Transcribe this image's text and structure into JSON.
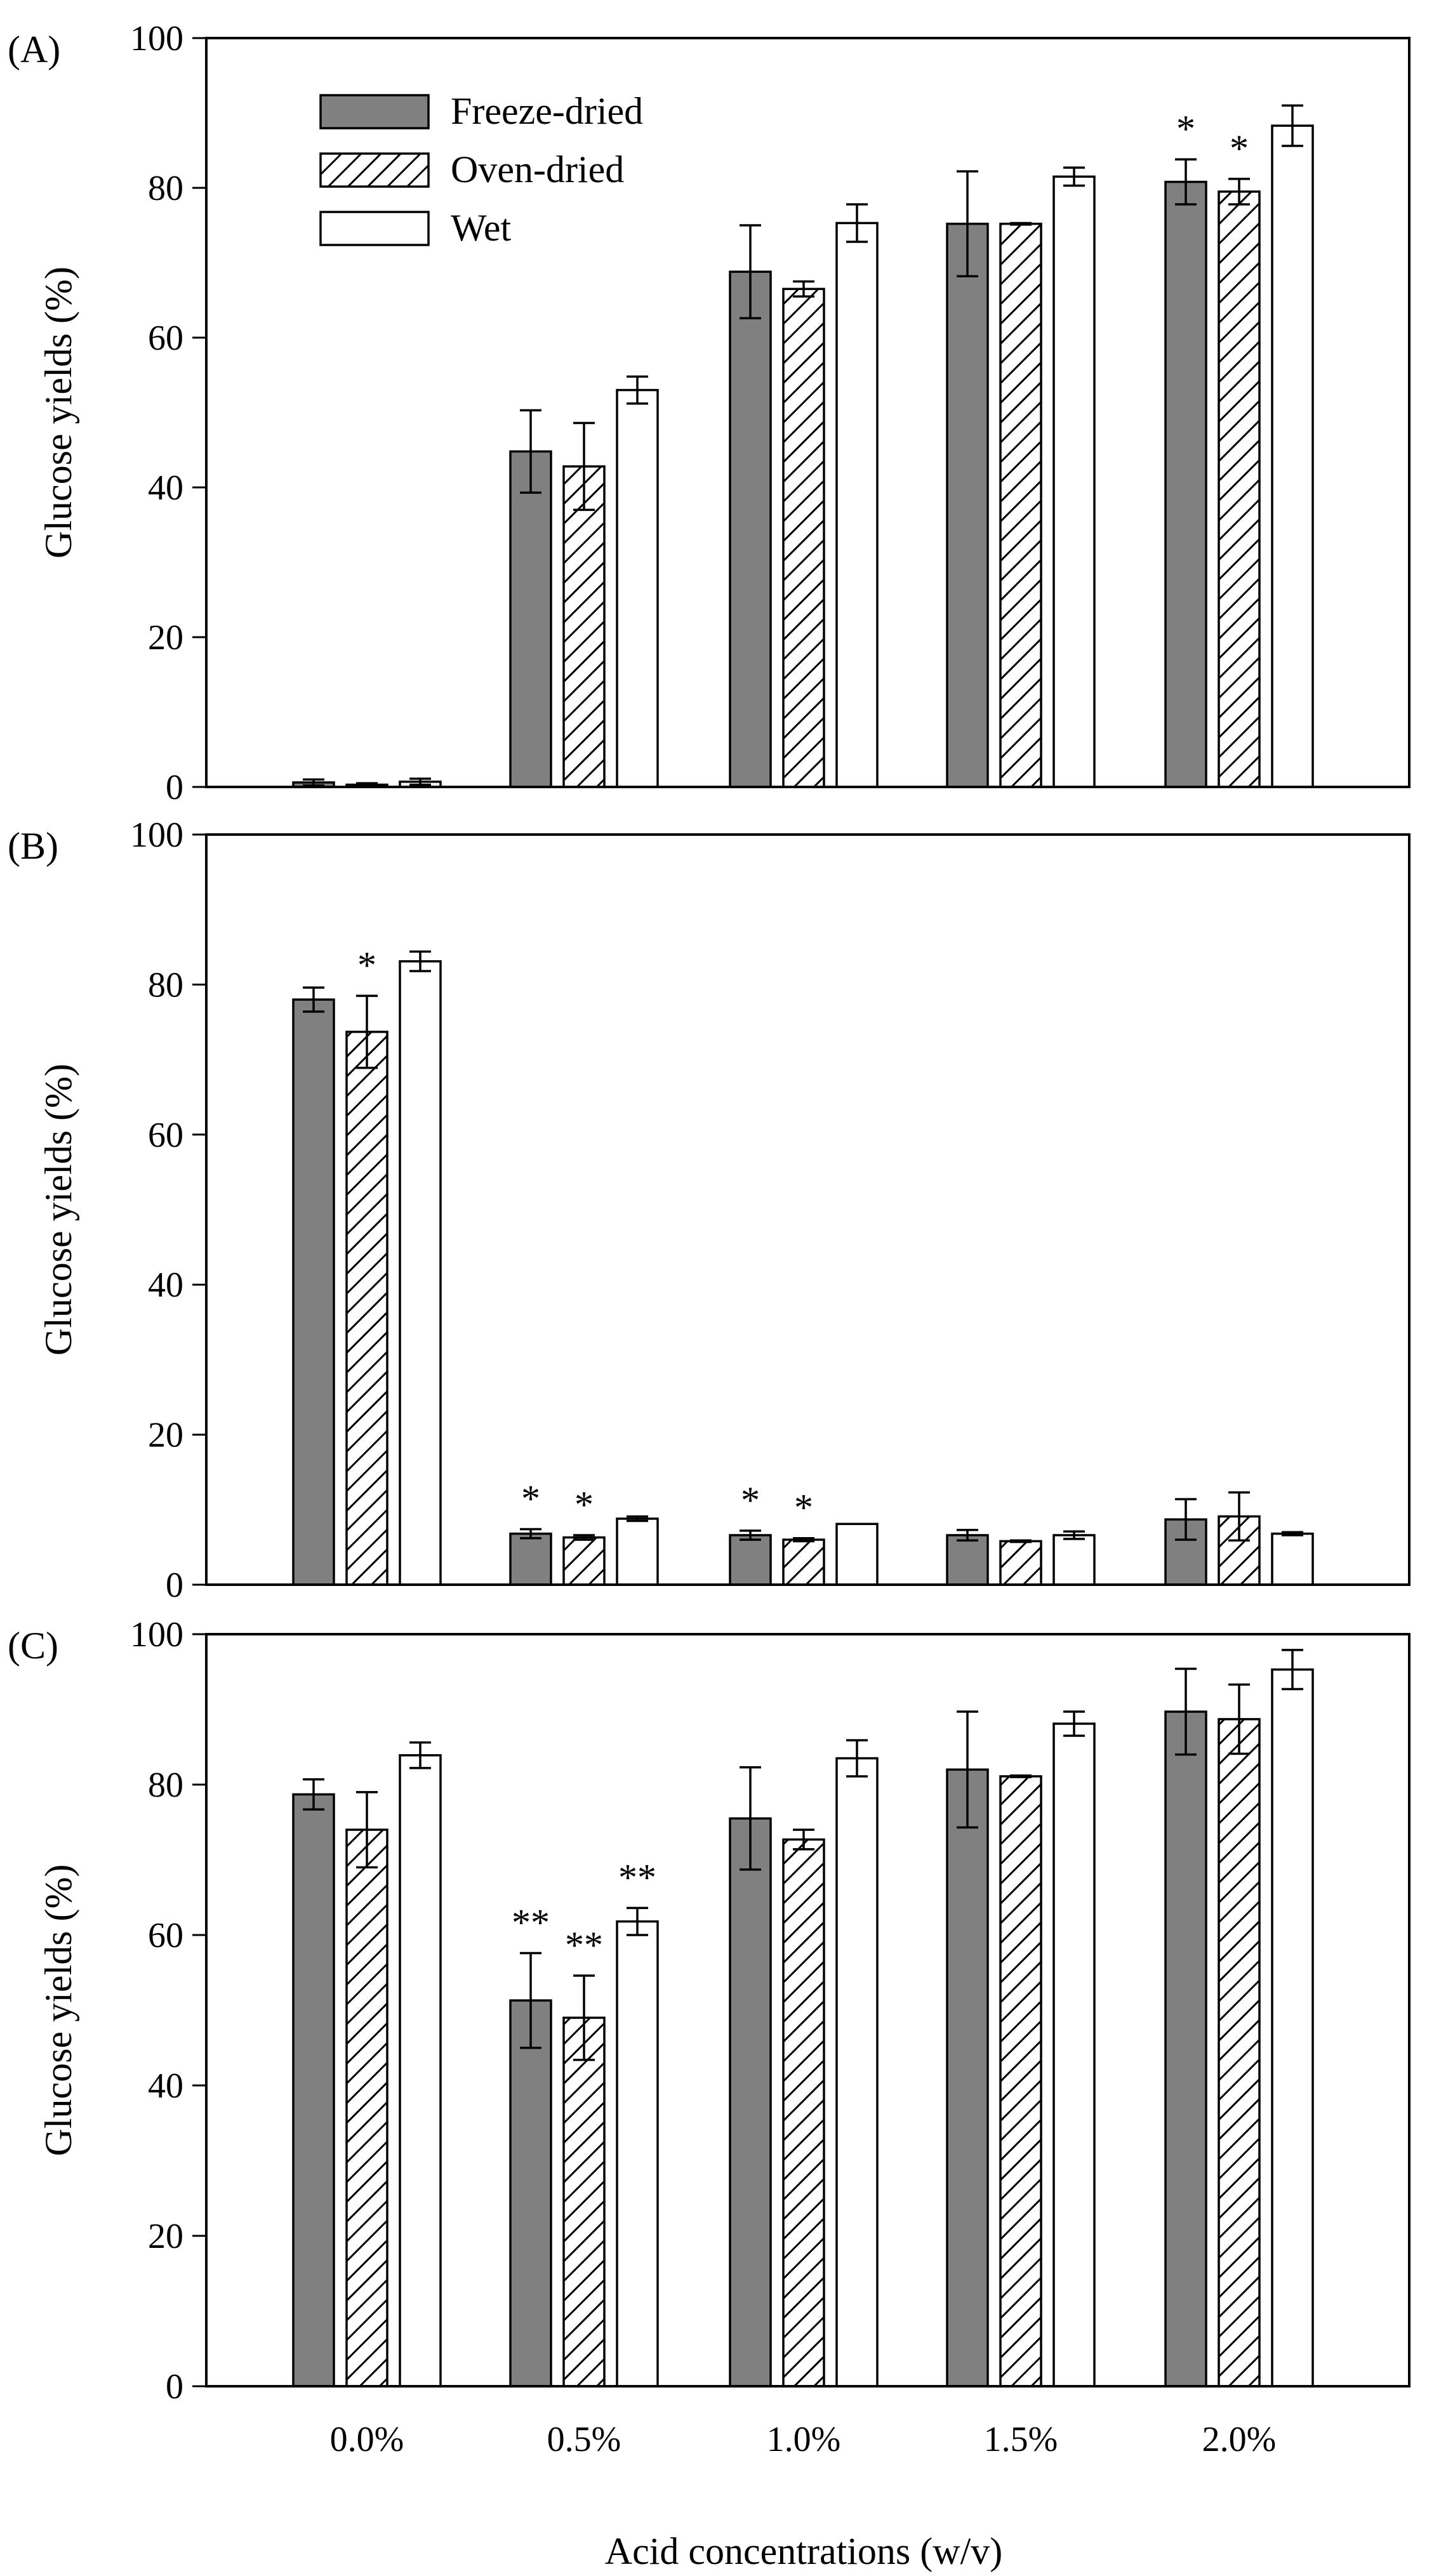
{
  "chart_data": {
    "type": "bar",
    "xlabel": "Acid concentrations (w/v)",
    "categories": [
      "0.0%",
      "0.5%",
      "1.0%",
      "1.5%",
      "2.0%"
    ],
    "legend": {
      "placement": "top-left",
      "entries": [
        "Freeze-dried",
        "Oven-dried",
        "Wet"
      ]
    },
    "styles": {
      "Freeze-dried": {
        "fill": "#808080",
        "pattern": "solid"
      },
      "Oven-dried": {
        "fill": "#ffffff",
        "pattern": "diagonal-hatch"
      },
      "Wet": {
        "fill": "#ffffff",
        "pattern": "none"
      }
    },
    "panels": [
      {
        "label": "(A)",
        "ylabel": "Glucose yields (%)",
        "ylim": [
          0,
          100
        ],
        "yticks": [
          "0",
          "20",
          "40",
          "60",
          "80",
          "100"
        ],
        "show_legend": true,
        "series": [
          {
            "name": "Freeze-dried",
            "values": [
              0.6,
              44.8,
              68.8,
              75.2,
              80.8
            ],
            "errors": [
              0.4,
              5.5,
              6.2,
              7.0,
              3.0
            ]
          },
          {
            "name": "Oven-dried",
            "values": [
              0.3,
              42.8,
              66.5,
              75.2,
              79.5
            ],
            "errors": [
              0.2,
              5.8,
              1.0,
              0.1,
              1.7
            ]
          },
          {
            "name": "Wet",
            "values": [
              0.7,
              53.0,
              75.3,
              81.5,
              88.3
            ],
            "errors": [
              0.4,
              1.8,
              2.5,
              1.2,
              2.7
            ]
          }
        ],
        "annotations": [
          {
            "category": 4,
            "series": 0,
            "text": "*"
          },
          {
            "category": 4,
            "series": 1,
            "text": "*"
          }
        ]
      },
      {
        "label": "(B)",
        "ylabel": "Glucose yields (%)",
        "ylim": [
          0,
          100
        ],
        "yticks": [
          "0",
          "20",
          "40",
          "60",
          "80",
          "100"
        ],
        "show_legend": false,
        "series": [
          {
            "name": "Freeze-dried",
            "values": [
              78.0,
              6.8,
              6.6,
              6.6,
              8.7
            ],
            "errors": [
              1.6,
              0.6,
              0.6,
              0.7,
              2.7
            ]
          },
          {
            "name": "Oven-dried",
            "values": [
              73.7,
              6.3,
              6.0,
              5.8,
              9.1
            ],
            "errors": [
              4.8,
              0.3,
              0.2,
              0.1,
              3.2
            ]
          },
          {
            "name": "Wet",
            "values": [
              83.1,
              8.8,
              8.1,
              6.6,
              6.8
            ],
            "errors": [
              1.3,
              0.3,
              0.0,
              0.5,
              0.2
            ]
          }
        ],
        "annotations": [
          {
            "category": 0,
            "series": 1,
            "text": "*"
          },
          {
            "category": 1,
            "series": 0,
            "text": "*"
          },
          {
            "category": 1,
            "series": 1,
            "text": "*"
          },
          {
            "category": 2,
            "series": 0,
            "text": "*"
          },
          {
            "category": 2,
            "series": 1,
            "text": "*"
          }
        ]
      },
      {
        "label": "(C)",
        "ylabel": "Glucose yields (%)",
        "ylim": [
          0,
          100
        ],
        "yticks": [
          "0",
          "20",
          "40",
          "60",
          "80",
          "100"
        ],
        "show_legend": false,
        "series": [
          {
            "name": "Freeze-dried",
            "values": [
              78.7,
              51.3,
              75.5,
              82.0,
              89.7
            ],
            "errors": [
              2.0,
              6.3,
              6.8,
              7.7,
              5.7
            ]
          },
          {
            "name": "Oven-dried",
            "values": [
              74.0,
              49.0,
              72.7,
              81.1,
              88.7
            ],
            "errors": [
              5.0,
              5.6,
              1.3,
              0.1,
              4.6
            ]
          },
          {
            "name": "Wet",
            "values": [
              83.9,
              61.8,
              83.5,
              88.1,
              95.3
            ],
            "errors": [
              1.7,
              1.8,
              2.4,
              1.6,
              2.6
            ]
          }
        ],
        "annotations": [
          {
            "category": 1,
            "series": 0,
            "text": "**"
          },
          {
            "category": 1,
            "series": 1,
            "text": "**"
          },
          {
            "category": 1,
            "series": 2,
            "text": "**"
          }
        ]
      }
    ]
  }
}
